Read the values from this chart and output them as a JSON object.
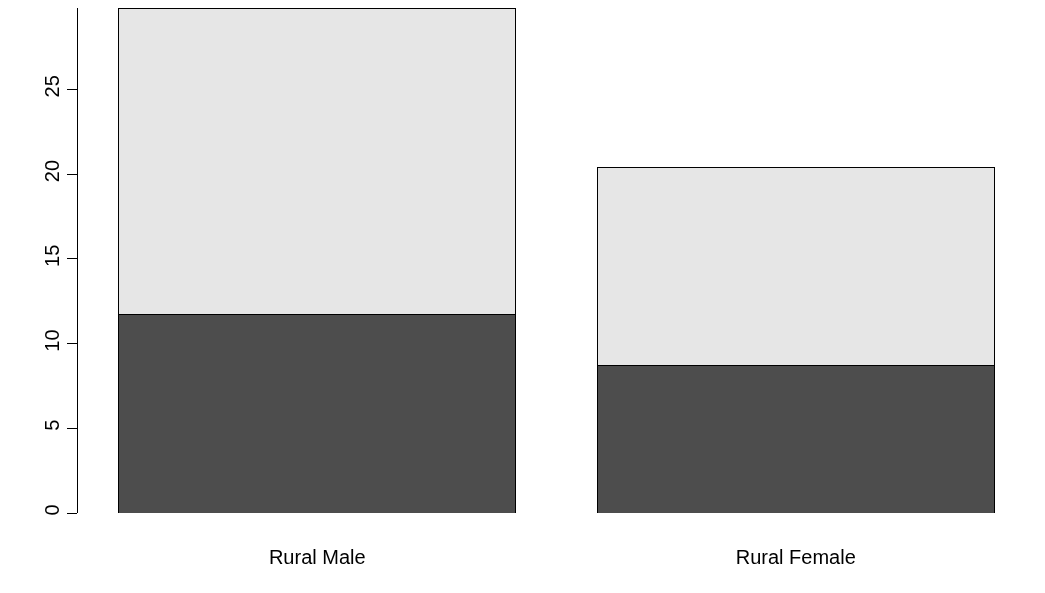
{
  "chart_data": {
    "type": "bar",
    "stacked": true,
    "categories": [
      "Rural Male",
      "Rural Female"
    ],
    "series": [
      {
        "color": "#4d4d4d",
        "values": [
          11.7,
          8.7
        ]
      },
      {
        "color": "#e6e6e6",
        "values": [
          18.1,
          11.7
        ]
      }
    ],
    "ylim": [
      0,
      29.8
    ],
    "yticks": [
      0,
      5,
      10,
      15,
      20,
      25
    ]
  }
}
